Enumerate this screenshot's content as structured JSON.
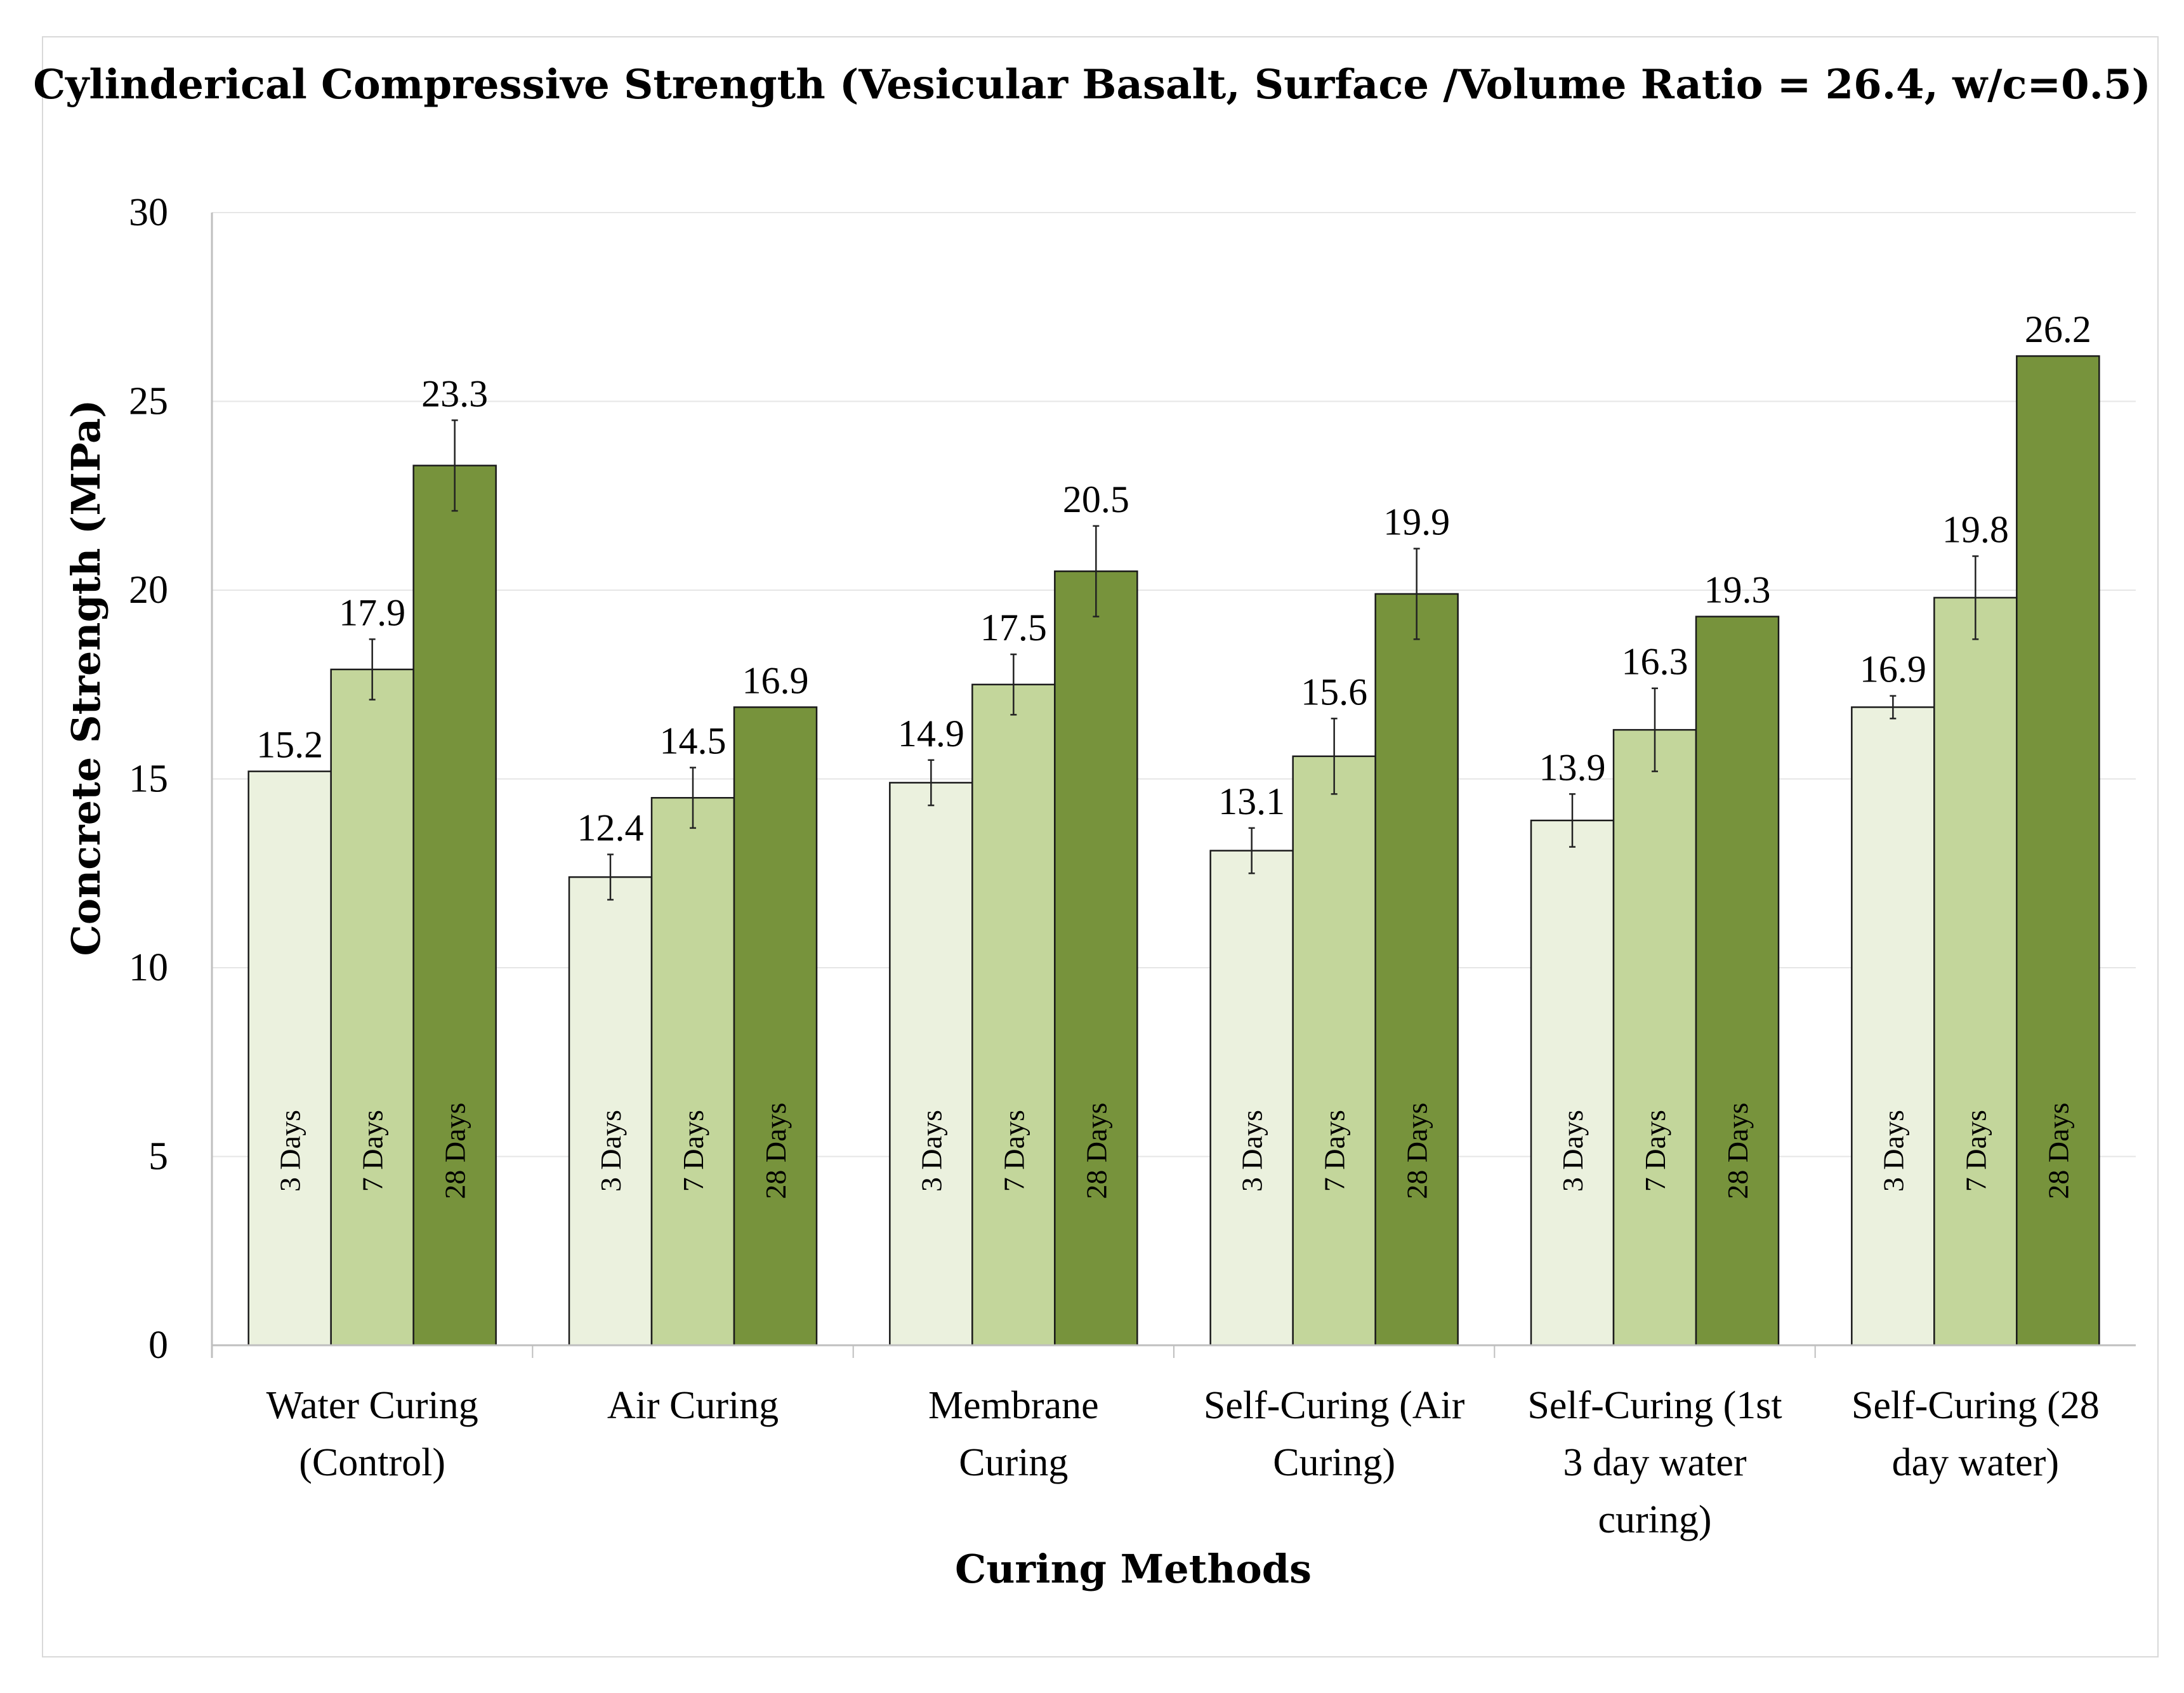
{
  "chart_data": {
    "type": "bar",
    "title": "Cylinderical Compressive Strength (Vesicular Basalt, Surface /Volume Ratio = 26.4, w/c=0.5)",
    "xlabel": "Curing Methods",
    "ylabel": "Concrete Strength (MPa)",
    "ylim": [
      0,
      30
    ],
    "yticks": [
      "0",
      "5",
      "10",
      "15",
      "20",
      "25",
      "30"
    ],
    "grid": true,
    "categories": [
      [
        "Water Curing",
        "(Control)"
      ],
      [
        "Air Curing"
      ],
      [
        "Membrane",
        "Curing"
      ],
      [
        "Self-Curing (Air",
        "Curing)"
      ],
      [
        "Self-Curing (1st",
        "3 day water",
        "curing)"
      ],
      [
        "Self-Curing (28",
        "day water)"
      ]
    ],
    "series": [
      {
        "name": "3 Days",
        "color": "#ebf1de",
        "values": [
          15.2,
          12.4,
          14.9,
          13.1,
          13.9,
          16.9
        ],
        "labels": [
          "15.2",
          "12.4",
          "14.9",
          "13.1",
          "13.9",
          "16.9"
        ],
        "errors": [
          0.0,
          0.6,
          0.6,
          0.6,
          0.7,
          0.3
        ]
      },
      {
        "name": "7 Days",
        "color": "#c3d69b",
        "values": [
          17.9,
          14.5,
          17.5,
          15.6,
          16.3,
          19.8
        ],
        "labels": [
          "17.9",
          "14.5",
          "17.5",
          "15.6",
          "16.3",
          "19.8"
        ],
        "errors": [
          0.8,
          0.8,
          0.8,
          1.0,
          1.1,
          1.1
        ]
      },
      {
        "name": "28 Days",
        "color": "#77933c",
        "values": [
          23.3,
          16.9,
          20.5,
          19.9,
          19.3,
          26.2
        ],
        "labels": [
          "23.3",
          "16.9",
          "20.5",
          "19.9",
          "19.3",
          "26.2"
        ],
        "errors": [
          1.2,
          0.0,
          1.2,
          1.2,
          0.0,
          0.0
        ]
      }
    ]
  }
}
